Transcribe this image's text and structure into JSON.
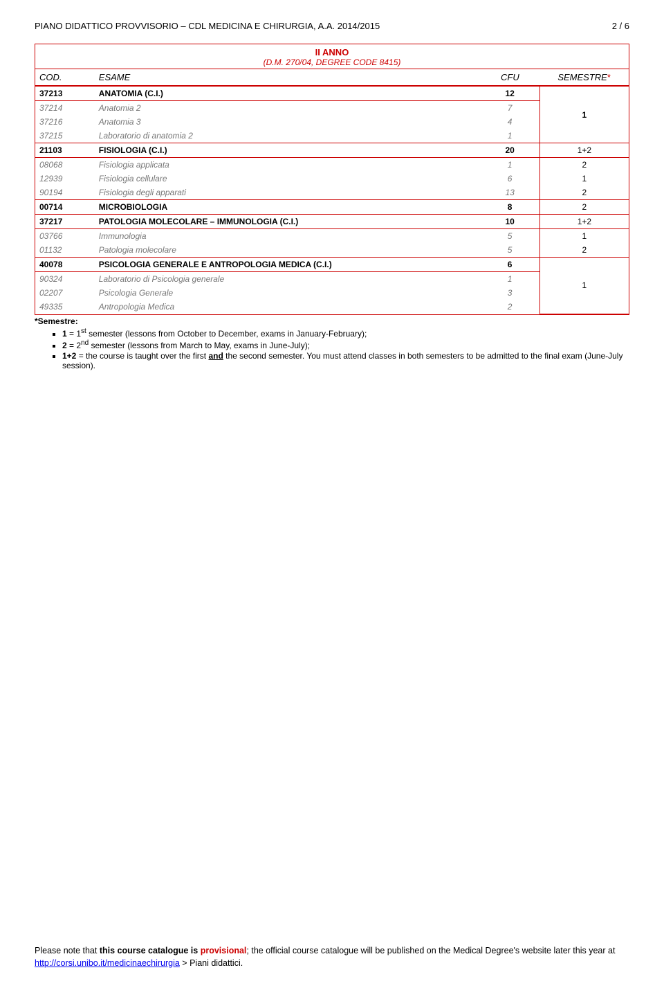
{
  "header": {
    "doc_title": "PIANO DIDATTICO PROVVISORIO – CDL MEDICINA E CHIRURGIA, A.A. 2014/2015",
    "page_num": "2 / 6"
  },
  "year_block": {
    "title": "II ANNO",
    "subtitle": "(D.M. 270/04, DEGREE CODE 8415)",
    "columns": {
      "code": "COD.",
      "name": "ESAME",
      "cfu": "CFU",
      "sem": "SEMESTRE"
    }
  },
  "rows": {
    "r0_code": "37213",
    "r0_name": "ANATOMIA (C.I.)",
    "r0_cfu": "12",
    "r1_code": "37214",
    "r1_name": "Anatomia 2",
    "r1_cfu": "7",
    "r2_code": "37216",
    "r2_name": "Anatomia 3",
    "r2_cfu": "4",
    "r3_code": "37215",
    "r3_name": "Laboratorio di anatomia 2",
    "r3_cfu": "1",
    "sem_a": "1",
    "r4_code": "21103",
    "r4_name": "FISIOLOGIA (C.I.)",
    "r4_cfu": "20",
    "r4_sem": "1+2",
    "r5_code": "08068",
    "r5_name": "Fisiologia applicata",
    "r5_cfu": "1",
    "r5_sem": "2",
    "r6_code": "12939",
    "r6_name": "Fisiologia cellulare",
    "r6_cfu": "6",
    "r6_sem": "1",
    "r7_code": "90194",
    "r7_name": "Fisiologia degli apparati",
    "r7_cfu": "13",
    "r7_sem": "2",
    "r8_code": "00714",
    "r8_name": "MICROBIOLOGIA",
    "r8_cfu": "8",
    "r8_sem": "2",
    "r9_code": "37217",
    "r9_name": "PATOLOGIA MOLECOLARE – IMMUNOLOGIA (C.I.)",
    "r9_cfu": "10",
    "r9_sem": "1+2",
    "r10_code": "03766",
    "r10_name": "Immunologia",
    "r10_cfu": "5",
    "r10_sem": "1",
    "r11_code": "01132",
    "r11_name": "Patologia molecolare",
    "r11_cfu": "5",
    "r11_sem": "2",
    "r12_code": "40078",
    "r12_name": "PSICOLOGIA GENERALE E ANTROPOLOGIA MEDICA (C.I.)",
    "r12_cfu": "6",
    "r13_code": "90324",
    "r13_name": "Laboratorio di Psicologia generale",
    "r13_cfu": "1",
    "r14_code": "02207",
    "r14_name": "Psicologia Generale",
    "r14_cfu": "3",
    "r15_code": "49335",
    "r15_name": "Antropologia Medica",
    "r15_cfu": "2",
    "sem_b": "1"
  },
  "notes": {
    "label": "*Semestre:",
    "li1a": "1",
    "li1b": " = 1",
    "li1sup": "st",
    "li1c": " semester (lessons from October to December, exams in January-February);",
    "li2a": "2",
    "li2b": " = 2",
    "li2sup": "nd",
    "li2c": " semester (lessons from March to May, exams in June-July);",
    "li3a": "1+2",
    "li3b": " = the course is taught over the first ",
    "li3c": "and",
    "li3d": " the second semester. You must attend classes in both semesters to be admitted to the final exam (June-July session)."
  },
  "footer": {
    "p1a": "Please note that ",
    "p1b": "this course catalogue is ",
    "p1c": "provisional",
    "p1d": "; the official course catalogue will be published on the Medical Degree's website later this year at ",
    "p1link": "http://corsi.unibo.it/medicinaechirurgia",
    "p1e": " > Piani didattici."
  }
}
